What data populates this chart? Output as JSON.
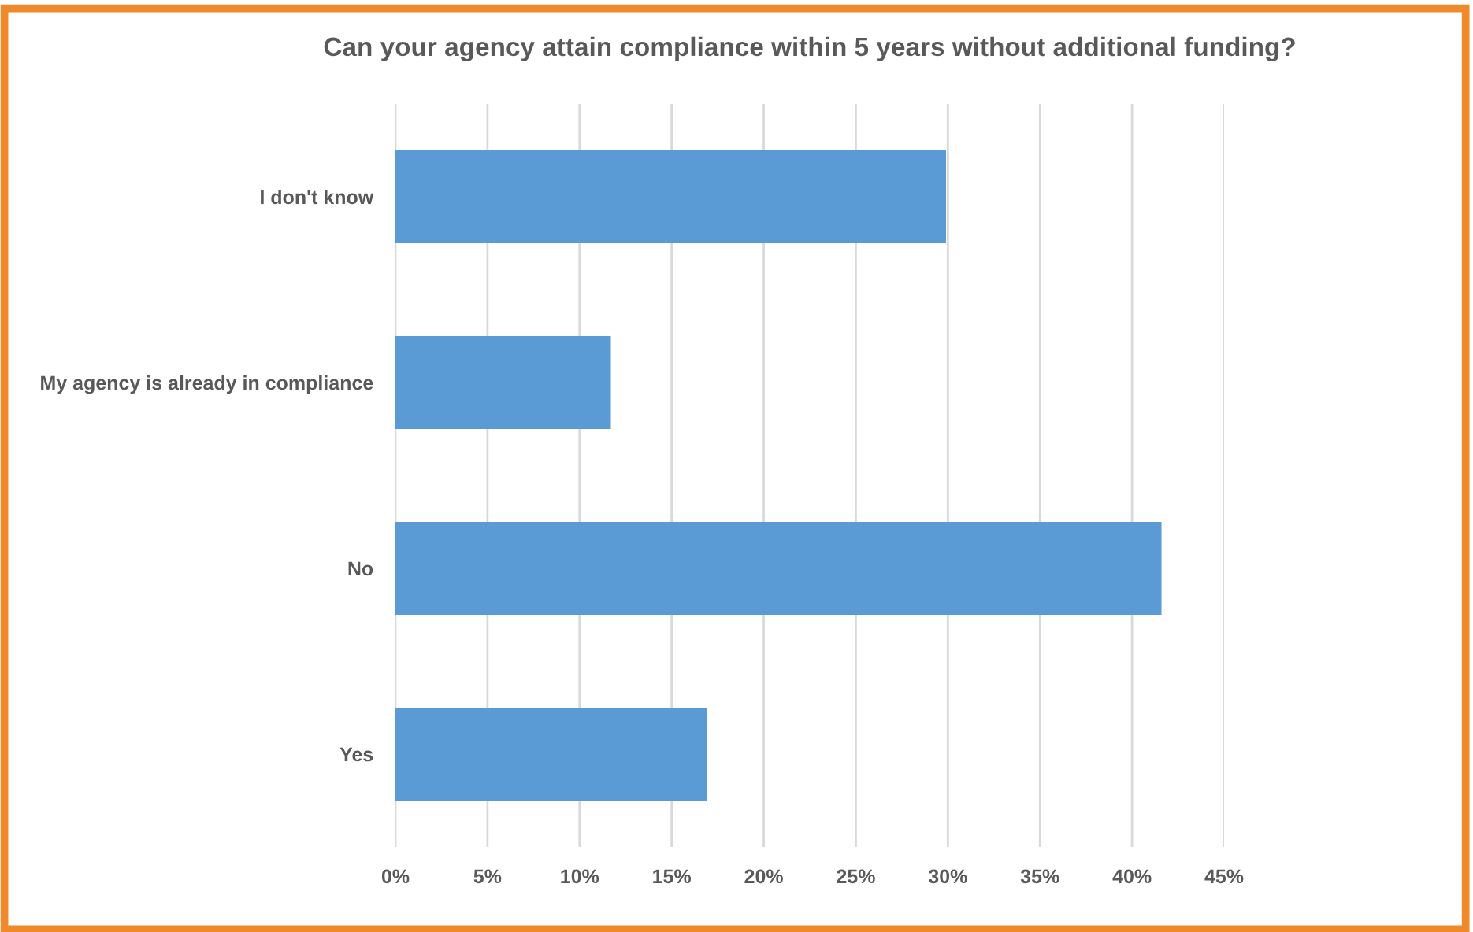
{
  "chart_data": {
    "type": "bar",
    "orientation": "horizontal",
    "title": "Can your agency attain compliance within 5 years without additional funding?",
    "categories": [
      "I don't know",
      "My agency is already in compliance",
      "No",
      "Yes"
    ],
    "values": [
      29.9,
      11.7,
      41.6,
      16.9
    ],
    "color": "#5b9bd5",
    "xlim": [
      0,
      45
    ],
    "xticks": [
      {
        "value": 0,
        "label": "0%"
      },
      {
        "value": 5,
        "label": "5%"
      },
      {
        "value": 10,
        "label": "10%"
      },
      {
        "value": 15,
        "label": "15%"
      },
      {
        "value": 20,
        "label": "20%"
      },
      {
        "value": 25,
        "label": "25%"
      },
      {
        "value": 30,
        "label": "30%"
      },
      {
        "value": 35,
        "label": "35%"
      },
      {
        "value": 40,
        "label": "40%"
      },
      {
        "value": 45,
        "label": "45%"
      }
    ],
    "grid": "x"
  }
}
